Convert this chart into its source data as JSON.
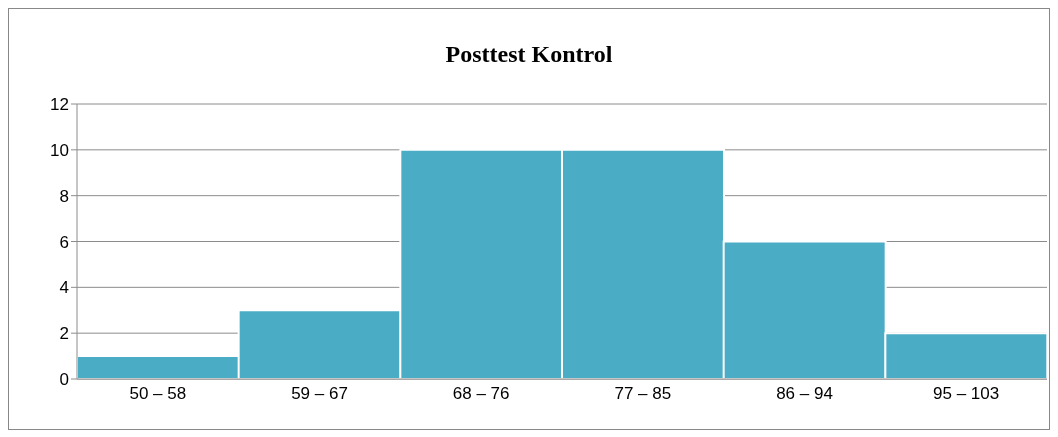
{
  "chart_data": {
    "type": "bar",
    "title": "Posttest Kontrol",
    "categories": [
      "50 – 58",
      "59 – 67",
      "68 – 76",
      "77 – 85",
      "86 – 94",
      "95 – 103"
    ],
    "values": [
      1,
      3,
      10,
      10,
      6,
      2
    ],
    "color": "#4bacc6",
    "ylim": [
      0,
      12
    ],
    "yticks": [
      0,
      2,
      4,
      6,
      8,
      10,
      12
    ],
    "grid": "y"
  }
}
